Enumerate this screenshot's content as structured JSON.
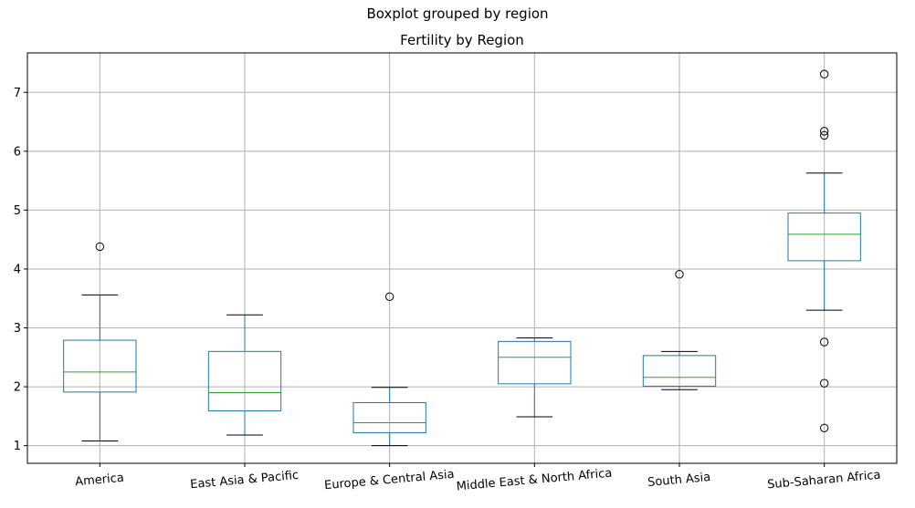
{
  "suptitle": "Boxplot grouped by region",
  "chart_data": {
    "type": "boxplot",
    "title": "Fertility by Region",
    "xlabel": "",
    "ylabel": "",
    "ylim": [
      0.7,
      7.67
    ],
    "yticks": [
      1,
      2,
      3,
      4,
      5,
      6,
      7
    ],
    "grid": true,
    "categories": [
      "America",
      "East Asia & Pacific",
      "Europe & Central Asia",
      "Middle East & North Africa",
      "South Asia",
      "Sub-Saharan Africa"
    ],
    "boxes": [
      {
        "name": "America",
        "whisker_low": 1.08,
        "q1": 1.91,
        "median": 2.25,
        "q3": 2.79,
        "whisker_high": 3.56,
        "outliers": [
          4.38
        ]
      },
      {
        "name": "East Asia & Pacific",
        "whisker_low": 1.18,
        "q1": 1.59,
        "median": 1.9,
        "q3": 2.6,
        "whisker_high": 3.22,
        "outliers": []
      },
      {
        "name": "Europe & Central Asia",
        "whisker_low": 1.0,
        "q1": 1.22,
        "median": 1.39,
        "q3": 1.73,
        "whisker_high": 1.99,
        "outliers": [
          3.53
        ]
      },
      {
        "name": "Middle East & North Africa",
        "whisker_low": 1.49,
        "q1": 2.05,
        "median": 2.5,
        "q3": 2.77,
        "whisker_high": 2.83,
        "outliers": []
      },
      {
        "name": "South Asia",
        "whisker_low": 1.95,
        "q1": 2.01,
        "median": 2.16,
        "q3": 2.53,
        "whisker_high": 2.6,
        "outliers": [
          3.91
        ]
      },
      {
        "name": "Sub-Saharan Africa",
        "whisker_low": 3.3,
        "q1": 4.14,
        "median": 4.59,
        "q3": 4.95,
        "whisker_high": 5.63,
        "outliers": [
          7.31,
          6.34,
          6.27,
          2.76,
          2.06,
          1.3
        ]
      }
    ],
    "colors": {
      "box": "#1f77b4",
      "median": "#2ca02c",
      "whisker": "#1f77b4",
      "cap": "#000000",
      "grid": "#b0b0b0"
    }
  }
}
